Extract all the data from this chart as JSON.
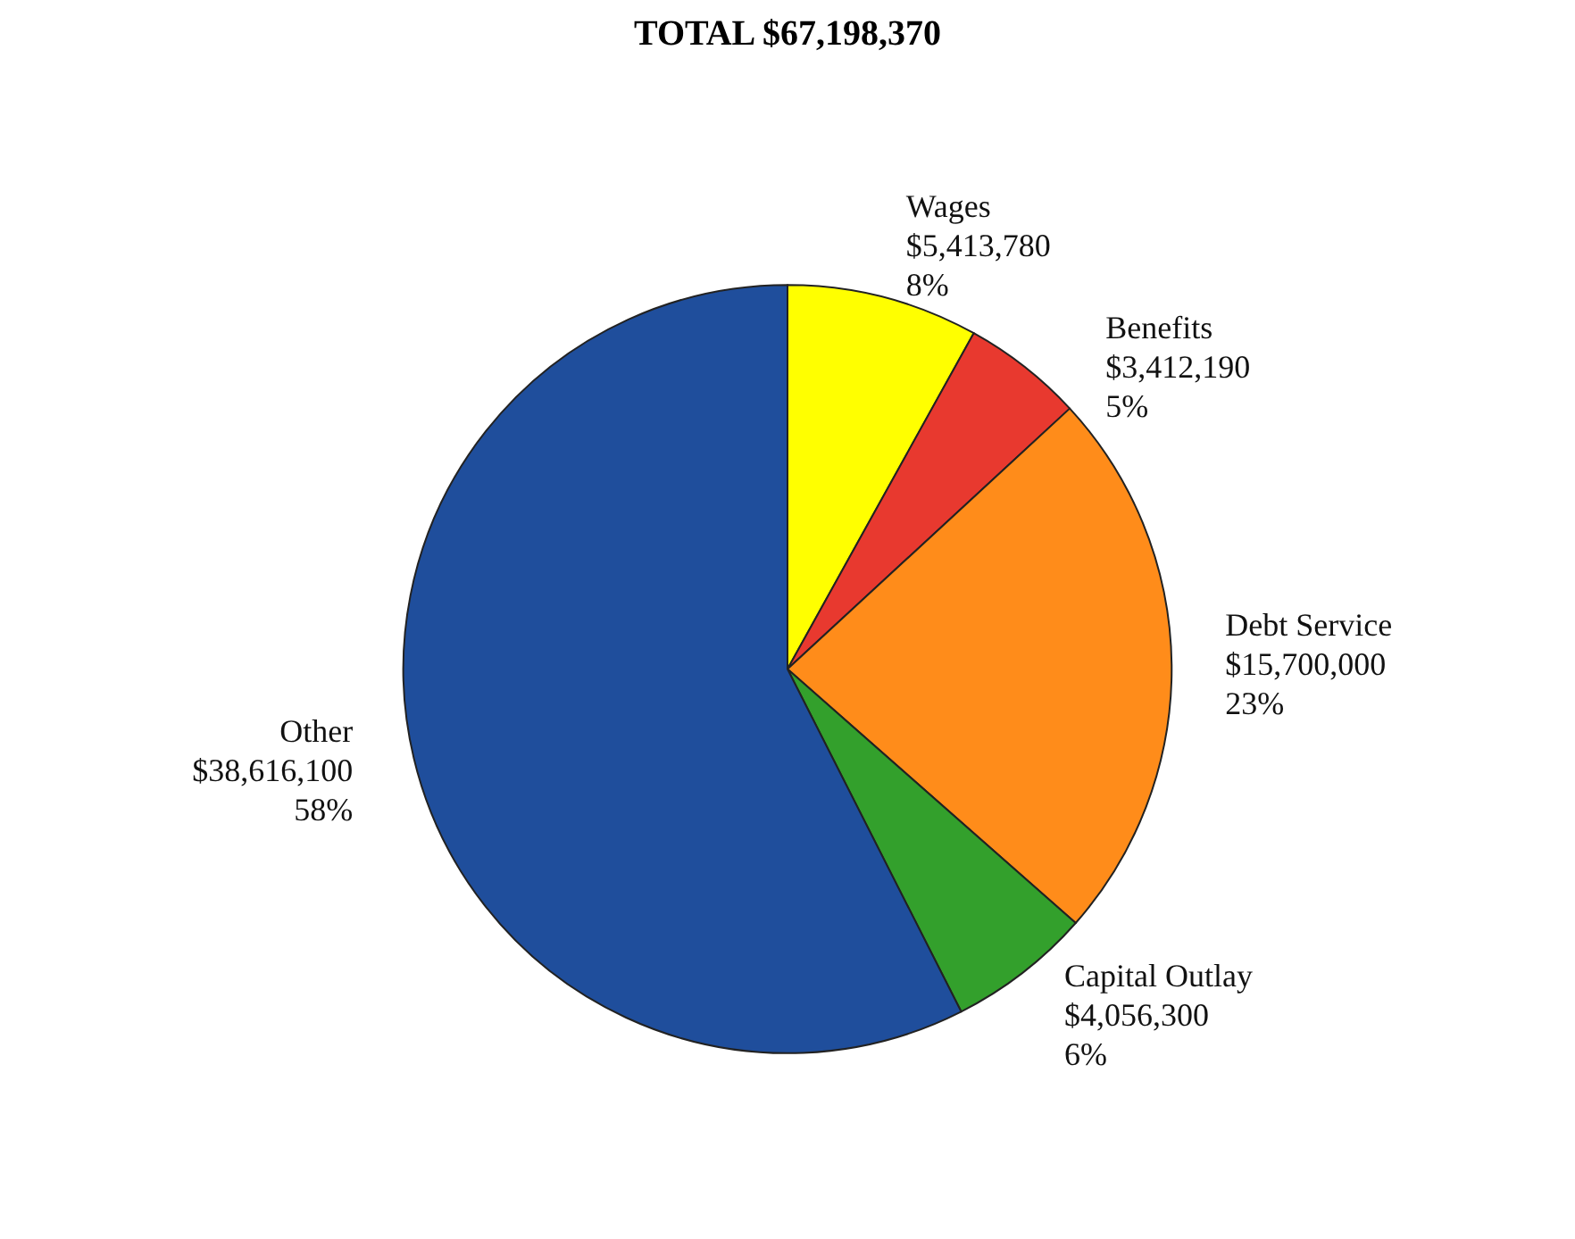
{
  "chart_data": {
    "type": "pie",
    "title": "TOTAL $67,198,370",
    "categories": [
      "Wages",
      "Benefits",
      "Debt Service",
      "Capital Outlay",
      "Other"
    ],
    "values": [
      5413780,
      3412190,
      15700000,
      4056300,
      38616100
    ],
    "colors": [
      "#ffff00",
      "#e8392f",
      "#ff8c1a",
      "#33a02c",
      "#1f4e9c"
    ],
    "value_labels": [
      "$5,413,780\n8%",
      "$3,412,190\n5%",
      "$15,700,000\n23%",
      "$4,056,300\n6%",
      "$38,616,100\n58%"
    ],
    "legend": false
  }
}
